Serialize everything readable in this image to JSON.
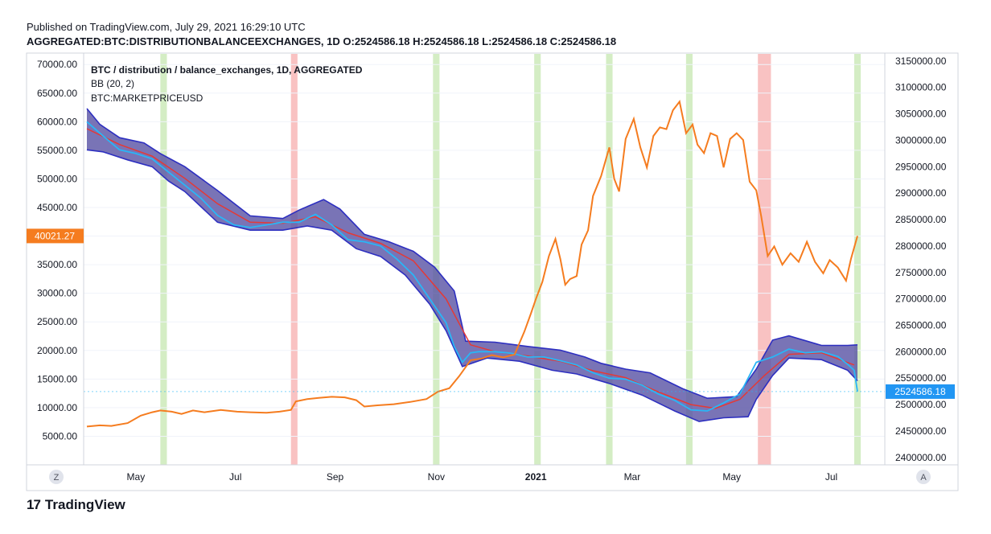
{
  "header": {
    "published": "Published on TradingView.com, July 29, 2021 16:29:10 UTC",
    "symbol_line": "AGGREGATED:BTC:DISTRIBUTIONBALANCEEXCHANGES, 1D  O:2524586.18  H:2524586.18  L:2524586.18  C:2524586.18"
  },
  "legend": {
    "line1": "BTC / distribution / balance_exchanges, 1D, AGGREGATED",
    "line2": "BB (20, 2)",
    "line3": "BTC:MARKETPRICEUSD"
  },
  "axis_buttons": {
    "left": "Z",
    "right": "A"
  },
  "footer": {
    "brand": "TradingView",
    "logo_glyph": "17"
  },
  "colors": {
    "price": "#f57c1f",
    "band_fill": "#5b55a6",
    "band_edge": "#2d2fc0",
    "basis": "#e53935",
    "balance": "#29b6f6",
    "green_shade": "#d4edc4",
    "red_shade": "#f9c2c2",
    "price_label_bg": "#f57c1f",
    "balance_label_bg": "#2196f3"
  },
  "chart_data": {
    "type": "line",
    "x_labels": [
      "May",
      "Jul",
      "Sep",
      "Nov",
      "2021",
      "Mar",
      "May",
      "Jul"
    ],
    "left_axis": {
      "ticks": [
        "70000.00",
        "65000.00",
        "60000.00",
        "55000.00",
        "50000.00",
        "45000.00",
        "40000.00",
        "35000.00",
        "30000.00",
        "25000.00",
        "20000.00",
        "15000.00",
        "10000.00",
        "5000.00"
      ],
      "range": [
        0,
        72000
      ],
      "current_label": "40021.27"
    },
    "right_axis": {
      "ticks": [
        "3150000.00",
        "3100000.00",
        "3050000.00",
        "3000000.00",
        "2950000.00",
        "2900000.00",
        "2850000.00",
        "2800000.00",
        "2750000.00",
        "2700000.00",
        "2650000.00",
        "2600000.00",
        "2550000.00",
        "2500000.00",
        "2450000.00",
        "2400000.00"
      ],
      "range": [
        2386000,
        3165000
      ],
      "current_label": "2524586.18"
    },
    "date_index_unit": "days since 2020-04-01",
    "shading": {
      "green": [
        [
          45,
          49
        ],
        [
          212,
          216
        ],
        [
          274,
          278
        ],
        [
          318,
          322
        ],
        [
          367,
          371
        ],
        [
          470,
          474
        ]
      ],
      "red": [
        [
          125,
          129
        ],
        [
          411,
          419
        ]
      ]
    },
    "series": [
      {
        "name": "BTC:MARKETPRICEUSD",
        "axis": "left",
        "points": [
          [
            0,
            6700
          ],
          [
            8,
            6900
          ],
          [
            15,
            6800
          ],
          [
            25,
            7300
          ],
          [
            33,
            8600
          ],
          [
            40,
            9200
          ],
          [
            45,
            9500
          ],
          [
            52,
            9300
          ],
          [
            58,
            8900
          ],
          [
            65,
            9500
          ],
          [
            72,
            9200
          ],
          [
            82,
            9600
          ],
          [
            92,
            9300
          ],
          [
            100,
            9200
          ],
          [
            110,
            9100
          ],
          [
            118,
            9300
          ],
          [
            125,
            9600
          ],
          [
            128,
            11100
          ],
          [
            135,
            11500
          ],
          [
            142,
            11700
          ],
          [
            150,
            11900
          ],
          [
            158,
            11800
          ],
          [
            165,
            11300
          ],
          [
            170,
            10200
          ],
          [
            178,
            10400
          ],
          [
            188,
            10600
          ],
          [
            198,
            11000
          ],
          [
            208,
            11500
          ],
          [
            215,
            12800
          ],
          [
            222,
            13400
          ],
          [
            228,
            15500
          ],
          [
            235,
            18300
          ],
          [
            242,
            18600
          ],
          [
            248,
            19200
          ],
          [
            255,
            18800
          ],
          [
            262,
            19300
          ],
          [
            268,
            23300
          ],
          [
            272,
            26500
          ],
          [
            275,
            29000
          ],
          [
            279,
            32000
          ],
          [
            283,
            36500
          ],
          [
            287,
            39500
          ],
          [
            290,
            36000
          ],
          [
            293,
            31500
          ],
          [
            296,
            32500
          ],
          [
            300,
            33000
          ],
          [
            303,
            38500
          ],
          [
            307,
            41000
          ],
          [
            310,
            47000
          ],
          [
            315,
            50500
          ],
          [
            320,
            55500
          ],
          [
            323,
            50000
          ],
          [
            326,
            47800
          ],
          [
            330,
            57000
          ],
          [
            335,
            60500
          ],
          [
            339,
            55500
          ],
          [
            343,
            52000
          ],
          [
            347,
            57500
          ],
          [
            351,
            59000
          ],
          [
            355,
            58700
          ],
          [
            359,
            62000
          ],
          [
            363,
            63500
          ],
          [
            367,
            58000
          ],
          [
            371,
            59500
          ],
          [
            374,
            56000
          ],
          [
            378,
            54500
          ],
          [
            382,
            58000
          ],
          [
            386,
            57500
          ],
          [
            390,
            52000
          ],
          [
            394,
            57000
          ],
          [
            398,
            58000
          ],
          [
            402,
            56800
          ],
          [
            406,
            49500
          ],
          [
            410,
            48000
          ],
          [
            413,
            43500
          ],
          [
            417,
            36500
          ],
          [
            421,
            38200
          ],
          [
            426,
            35000
          ],
          [
            431,
            37000
          ],
          [
            436,
            35500
          ],
          [
            441,
            39000
          ],
          [
            446,
            35500
          ],
          [
            451,
            33500
          ],
          [
            455,
            35800
          ],
          [
            460,
            34500
          ],
          [
            465,
            32200
          ],
          [
            468,
            36000
          ],
          [
            472,
            40021
          ]
        ]
      },
      {
        "name": "balance_exchanges",
        "axis": "right",
        "points": [
          [
            0,
            3035000
          ],
          [
            10,
            3008000
          ],
          [
            20,
            2982000
          ],
          [
            30,
            2975000
          ],
          [
            40,
            2965000
          ],
          [
            50,
            2940000
          ],
          [
            60,
            2915000
          ],
          [
            70,
            2890000
          ],
          [
            80,
            2858000
          ],
          [
            90,
            2840000
          ],
          [
            100,
            2835000
          ],
          [
            110,
            2840000
          ],
          [
            120,
            2845000
          ],
          [
            130,
            2845000
          ],
          [
            140,
            2860000
          ],
          [
            150,
            2840000
          ],
          [
            160,
            2812000
          ],
          [
            170,
            2808000
          ],
          [
            180,
            2800000
          ],
          [
            190,
            2775000
          ],
          [
            200,
            2745000
          ],
          [
            210,
            2700000
          ],
          [
            220,
            2655000
          ],
          [
            225,
            2610000
          ],
          [
            230,
            2580000
          ],
          [
            235,
            2598000
          ],
          [
            240,
            2600000
          ],
          [
            250,
            2600000
          ],
          [
            260,
            2597000
          ],
          [
            270,
            2590000
          ],
          [
            280,
            2590000
          ],
          [
            290,
            2583000
          ],
          [
            300,
            2575000
          ],
          [
            310,
            2560000
          ],
          [
            320,
            2550000
          ],
          [
            330,
            2548000
          ],
          [
            340,
            2537000
          ],
          [
            350,
            2520000
          ],
          [
            360,
            2508000
          ],
          [
            370,
            2490000
          ],
          [
            380,
            2488000
          ],
          [
            390,
            2503000
          ],
          [
            400,
            2520000
          ],
          [
            410,
            2580000
          ],
          [
            420,
            2590000
          ],
          [
            430,
            2605000
          ],
          [
            440,
            2598000
          ],
          [
            450,
            2600000
          ],
          [
            460,
            2591000
          ],
          [
            466,
            2576000
          ],
          [
            470,
            2565000
          ],
          [
            472,
            2524586
          ]
        ]
      },
      {
        "name": "BB (20, 2) basis",
        "axis": "right",
        "points": [
          [
            0,
            3022000
          ],
          [
            20,
            2992000
          ],
          [
            40,
            2970000
          ],
          [
            60,
            2928000
          ],
          [
            80,
            2880000
          ],
          [
            100,
            2845000
          ],
          [
            120,
            2843000
          ],
          [
            140,
            2855000
          ],
          [
            160,
            2825000
          ],
          [
            180,
            2805000
          ],
          [
            200,
            2772000
          ],
          [
            220,
            2700000
          ],
          [
            235,
            2613000
          ],
          [
            250,
            2600000
          ],
          [
            270,
            2592000
          ],
          [
            290,
            2582000
          ],
          [
            310,
            2564000
          ],
          [
            330,
            2551000
          ],
          [
            350,
            2524000
          ],
          [
            370,
            2500000
          ],
          [
            385,
            2493000
          ],
          [
            400,
            2510000
          ],
          [
            415,
            2555000
          ],
          [
            430,
            2595000
          ],
          [
            450,
            2598000
          ],
          [
            470,
            2575000
          ]
        ]
      }
    ],
    "bollinger_upper": [
      [
        0,
        3060000
      ],
      [
        8,
        3030000
      ],
      [
        20,
        3005000
      ],
      [
        35,
        2995000
      ],
      [
        45,
        2975000
      ],
      [
        60,
        2950000
      ],
      [
        80,
        2905000
      ],
      [
        100,
        2857000
      ],
      [
        120,
        2852000
      ],
      [
        130,
        2868000
      ],
      [
        145,
        2888000
      ],
      [
        155,
        2870000
      ],
      [
        170,
        2822000
      ],
      [
        185,
        2808000
      ],
      [
        200,
        2790000
      ],
      [
        213,
        2760000
      ],
      [
        225,
        2715000
      ],
      [
        232,
        2620000
      ],
      [
        250,
        2618000
      ],
      [
        270,
        2610000
      ],
      [
        290,
        2603000
      ],
      [
        305,
        2590000
      ],
      [
        315,
        2578000
      ],
      [
        330,
        2567000
      ],
      [
        345,
        2560000
      ],
      [
        365,
        2530000
      ],
      [
        380,
        2512000
      ],
      [
        398,
        2515000
      ],
      [
        410,
        2567000
      ],
      [
        420,
        2622000
      ],
      [
        430,
        2630000
      ],
      [
        450,
        2612000
      ],
      [
        466,
        2612000
      ],
      [
        472,
        2613000
      ]
    ],
    "bollinger_lower": [
      [
        0,
        2982000
      ],
      [
        10,
        2978000
      ],
      [
        25,
        2963000
      ],
      [
        40,
        2950000
      ],
      [
        50,
        2923000
      ],
      [
        60,
        2903000
      ],
      [
        80,
        2845000
      ],
      [
        100,
        2830000
      ],
      [
        120,
        2830000
      ],
      [
        135,
        2838000
      ],
      [
        150,
        2830000
      ],
      [
        165,
        2795000
      ],
      [
        180,
        2780000
      ],
      [
        195,
        2745000
      ],
      [
        210,
        2690000
      ],
      [
        220,
        2640000
      ],
      [
        230,
        2572000
      ],
      [
        245,
        2588000
      ],
      [
        265,
        2582000
      ],
      [
        285,
        2565000
      ],
      [
        300,
        2558000
      ],
      [
        320,
        2540000
      ],
      [
        340,
        2518000
      ],
      [
        360,
        2488000
      ],
      [
        375,
        2468000
      ],
      [
        390,
        2475000
      ],
      [
        405,
        2477000
      ],
      [
        410,
        2510000
      ],
      [
        420,
        2555000
      ],
      [
        430,
        2588000
      ],
      [
        450,
        2585000
      ],
      [
        466,
        2565000
      ],
      [
        472,
        2545000
      ]
    ]
  }
}
